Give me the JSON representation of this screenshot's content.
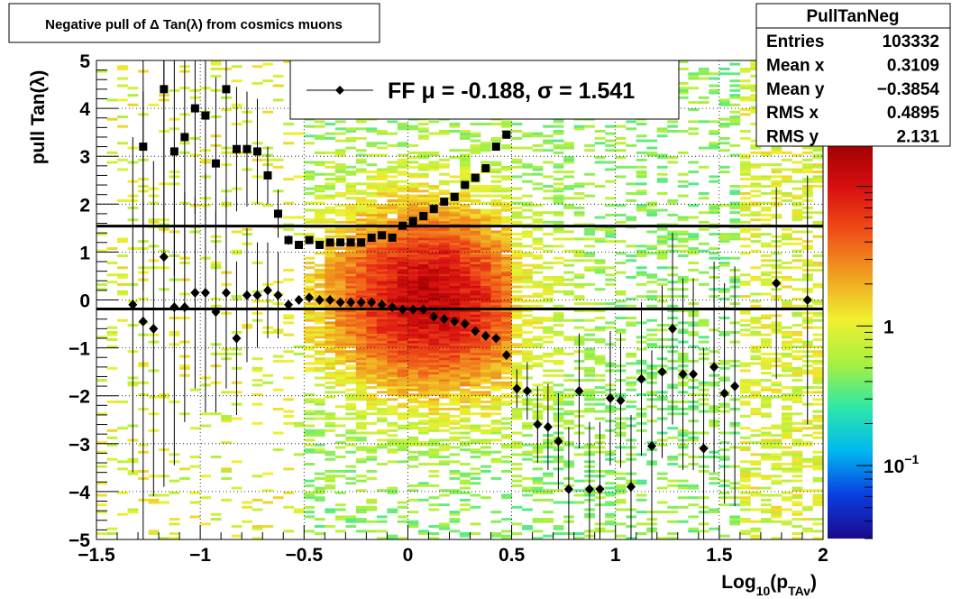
{
  "title": "Negative pull of Δ Tan(λ) from cosmics muons",
  "stats": {
    "name": "PullTanNeg",
    "rows": [
      {
        "label": "Entries",
        "value": "103332"
      },
      {
        "label": "Mean x",
        "value": "0.3109"
      },
      {
        "label": "Mean y",
        "value": "−0.3854"
      },
      {
        "label": "RMS x",
        "value": "0.4895"
      },
      {
        "label": "RMS y",
        "value": "2.131"
      }
    ]
  },
  "legend": {
    "entries": [
      {
        "text": "FF μ = -0.188, σ =   1.541",
        "marker": "diamond"
      }
    ]
  },
  "chart_data": {
    "type": "heatmap",
    "title": "Negative pull of Δ Tan(λ) from cosmics muons",
    "xlabel": "Log₁₀(p_TAv)",
    "xlabel_main": "Log",
    "xlabel_sub1": "10",
    "xlabel_mid": "(p",
    "xlabel_sub2": "TAv",
    "xlabel_end": ")",
    "ylabel": "pull Tan(λ)",
    "xlim": [
      -1.5,
      2
    ],
    "ylim": [
      -5,
      5
    ],
    "x_ticks": [
      {
        "v": -1.5,
        "label": "−1.5"
      },
      {
        "v": -1,
        "label": "−1"
      },
      {
        "v": -0.5,
        "label": "−0.5"
      },
      {
        "v": 0,
        "label": "0"
      },
      {
        "v": 0.5,
        "label": "0.5"
      },
      {
        "v": 1,
        "label": "1"
      },
      {
        "v": 1.5,
        "label": "1.5"
      },
      {
        "v": 2,
        "label": "2"
      }
    ],
    "y_ticks": [
      {
        "v": 5,
        "label": "5"
      },
      {
        "v": 4,
        "label": "4"
      },
      {
        "v": 3,
        "label": "3"
      },
      {
        "v": 2,
        "label": "2"
      },
      {
        "v": 1,
        "label": "1"
      },
      {
        "v": 0,
        "label": "0"
      },
      {
        "v": -1,
        "label": "−1"
      },
      {
        "v": -2,
        "label": "−2"
      },
      {
        "v": -3,
        "label": "−3"
      },
      {
        "v": -4,
        "label": "−4"
      },
      {
        "v": -5,
        "label": "−5"
      }
    ],
    "grid": true,
    "log_z": true,
    "z_ticks": [
      {
        "v": 1,
        "label": "1",
        "exp": ""
      },
      {
        "v": 0.1,
        "label": "10",
        "exp": "−1"
      }
    ],
    "z_range": [
      0.03,
      20
    ],
    "palette": [
      "#1a0a8c",
      "#0a3ee0",
      "#00b8f0",
      "#2ee8a8",
      "#a8f040",
      "#f0f030",
      "#f0a020",
      "#f05018",
      "#d81010",
      "#a00000"
    ],
    "horizontal_lines": [
      1.541,
      -0.188
    ],
    "series": [
      {
        "name": "sigma",
        "marker": "square",
        "points": [
          [
            -1.275,
            3.2,
            3.0
          ],
          [
            -1.175,
            4.4,
            3.0
          ],
          [
            -1.125,
            3.1,
            2.6
          ],
          [
            -1.075,
            3.4,
            2.5
          ],
          [
            -1.025,
            4.0,
            2.2
          ],
          [
            -0.975,
            3.85,
            2.2
          ],
          [
            -0.925,
            2.85,
            1.8
          ],
          [
            -0.875,
            4.4,
            2.5
          ],
          [
            -0.825,
            3.15,
            1.3
          ],
          [
            -0.775,
            3.15,
            1.2
          ],
          [
            -0.725,
            3.1,
            1.1
          ],
          [
            -0.675,
            2.6,
            0.6
          ],
          [
            -0.625,
            1.8,
            0.5
          ],
          [
            -0.575,
            1.25,
            0.1
          ],
          [
            -0.525,
            1.15,
            0.08
          ],
          [
            -0.475,
            1.25,
            0.06
          ],
          [
            -0.425,
            1.15,
            0.05
          ],
          [
            -0.375,
            1.2,
            0.05
          ],
          [
            -0.325,
            1.2,
            0.05
          ],
          [
            -0.275,
            1.2,
            0.05
          ],
          [
            -0.225,
            1.2,
            0.05
          ],
          [
            -0.175,
            1.3,
            0.04
          ],
          [
            -0.125,
            1.35,
            0.04
          ],
          [
            -0.075,
            1.3,
            0.04
          ],
          [
            -0.025,
            1.55,
            0.04
          ],
          [
            0.025,
            1.65,
            0.04
          ],
          [
            0.075,
            1.75,
            0.04
          ],
          [
            0.125,
            1.9,
            0.04
          ],
          [
            0.175,
            2.05,
            0.04
          ],
          [
            0.225,
            2.15,
            0.05
          ],
          [
            0.275,
            2.4,
            0.05
          ],
          [
            0.325,
            2.55,
            0.05
          ],
          [
            0.375,
            2.75,
            0.06
          ],
          [
            0.425,
            3.2,
            0.07
          ],
          [
            0.475,
            3.45,
            0.08
          ]
        ]
      },
      {
        "name": "mean",
        "marker": "diamond",
        "points": [
          [
            -1.325,
            -0.1,
            3.5
          ],
          [
            -1.275,
            -0.45,
            4.8
          ],
          [
            -1.225,
            -0.6,
            3.5
          ],
          [
            -1.175,
            0.9,
            4.8
          ],
          [
            -1.125,
            -0.15,
            3.3
          ],
          [
            -1.075,
            -0.15,
            2.4
          ],
          [
            -1.025,
            0.15,
            2.0
          ],
          [
            -0.975,
            0.15,
            2.5
          ],
          [
            -0.925,
            -0.25,
            2.1
          ],
          [
            -0.875,
            0.15,
            2.0
          ],
          [
            -0.825,
            -0.8,
            1.6
          ],
          [
            -0.775,
            0.1,
            1.4
          ],
          [
            -0.725,
            0.1,
            1.1
          ],
          [
            -0.675,
            0.2,
            1.0
          ],
          [
            -0.625,
            0.1,
            0.9
          ],
          [
            -0.575,
            -0.1,
            0.1
          ],
          [
            -0.525,
            0.0,
            0.08
          ],
          [
            -0.475,
            0.05,
            0.06
          ],
          [
            -0.425,
            0.0,
            0.05
          ],
          [
            -0.375,
            0.0,
            0.05
          ],
          [
            -0.325,
            -0.05,
            0.05
          ],
          [
            -0.275,
            -0.05,
            0.05
          ],
          [
            -0.225,
            -0.05,
            0.05
          ],
          [
            -0.175,
            -0.05,
            0.04
          ],
          [
            -0.125,
            -0.1,
            0.04
          ],
          [
            -0.075,
            -0.15,
            0.04
          ],
          [
            -0.025,
            -0.2,
            0.04
          ],
          [
            0.025,
            -0.2,
            0.04
          ],
          [
            0.075,
            -0.2,
            0.04
          ],
          [
            0.125,
            -0.35,
            0.04
          ],
          [
            0.175,
            -0.4,
            0.04
          ],
          [
            0.225,
            -0.45,
            0.05
          ],
          [
            0.275,
            -0.5,
            0.05
          ],
          [
            0.325,
            -0.65,
            0.05
          ],
          [
            0.375,
            -0.75,
            0.06
          ],
          [
            0.425,
            -0.8,
            0.07
          ],
          [
            0.475,
            -1.15,
            0.08
          ],
          [
            0.525,
            -1.85,
            0.4
          ],
          [
            0.575,
            -1.9,
            0.6
          ],
          [
            0.625,
            -2.6,
            0.8
          ],
          [
            0.675,
            -2.65,
            0.9
          ],
          [
            0.725,
            -2.95,
            1.0
          ],
          [
            0.775,
            -3.95,
            1.3
          ],
          [
            0.825,
            -1.9,
            1.2
          ],
          [
            0.875,
            -3.95,
            1.4
          ],
          [
            0.925,
            -3.95,
            1.4
          ],
          [
            0.975,
            -2.05,
            1.4
          ],
          [
            1.025,
            -2.1,
            1.4
          ],
          [
            1.075,
            -3.9,
            1.5
          ],
          [
            1.125,
            -1.65,
            1.6
          ],
          [
            1.175,
            -3.05,
            2.0
          ],
          [
            1.225,
            -1.5,
            1.8
          ],
          [
            1.275,
            -0.6,
            2.0
          ],
          [
            1.325,
            -1.55,
            2.0
          ],
          [
            1.375,
            -1.55,
            2.0
          ],
          [
            1.425,
            -3.1,
            2.1
          ],
          [
            1.475,
            -1.4,
            2.2
          ],
          [
            1.525,
            -1.95,
            2.3
          ],
          [
            1.575,
            -1.8,
            2.5
          ],
          [
            1.775,
            0.35,
            2.0
          ],
          [
            1.925,
            0.0,
            2.6
          ]
        ]
      }
    ]
  }
}
